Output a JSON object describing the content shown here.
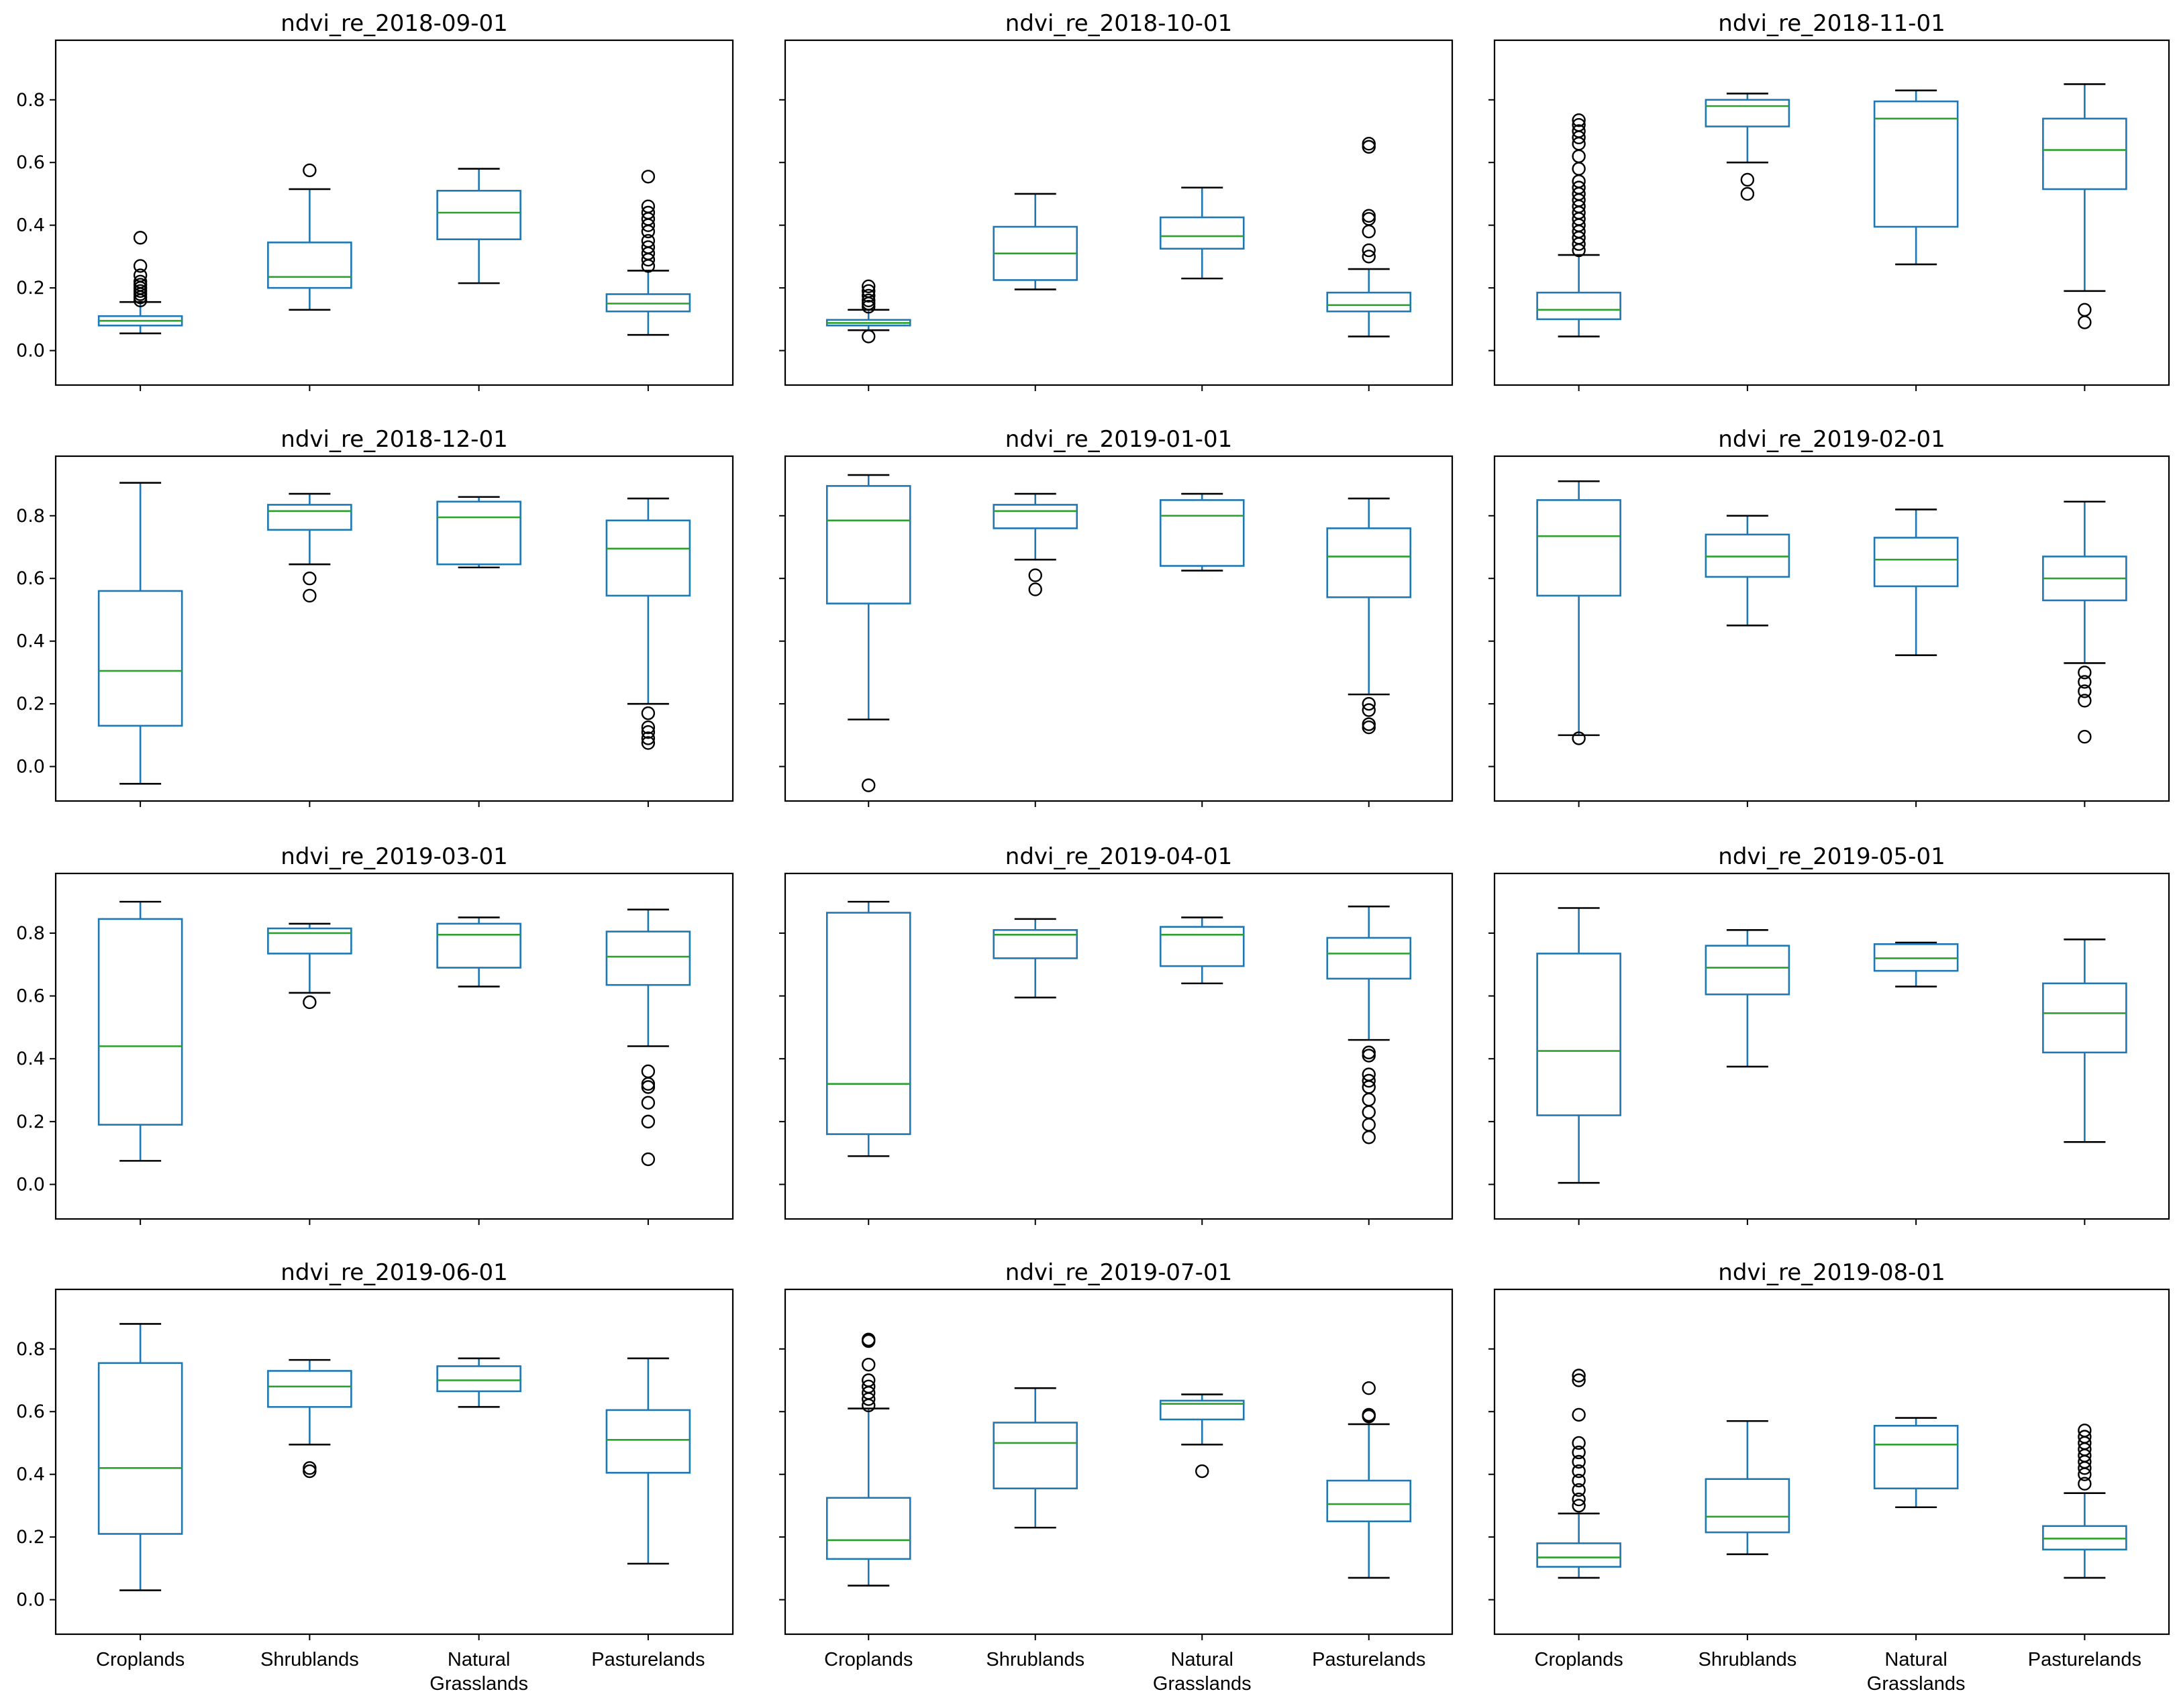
{
  "chart_data": {
    "type": "box",
    "layout": "4x3 grid, shared x and y axes",
    "categories": [
      "Croplands",
      "Shrublands",
      "Natural\nGrasslands",
      "Pasturelands"
    ],
    "ylim": [
      -0.11,
      0.99
    ],
    "yticks": [
      "0.0",
      "0.2",
      "0.4",
      "0.6",
      "0.8"
    ],
    "colors": {
      "box": "#1f77b4",
      "median": "#2ca02c",
      "whisker": "#000000",
      "flier": "#000000"
    },
    "panels": [
      {
        "title": "ndvi_re_2018-09-01",
        "boxes": [
          {
            "q1": 0.08,
            "median": 0.095,
            "q3": 0.11,
            "whislo": 0.055,
            "whishi": 0.155,
            "fliers": [
              0.16,
              0.17,
              0.18,
              0.19,
              0.2,
              0.21,
              0.22,
              0.24,
              0.27,
              0.36
            ]
          },
          {
            "q1": 0.2,
            "median": 0.235,
            "q3": 0.345,
            "whislo": 0.13,
            "whishi": 0.515,
            "fliers": [
              0.575
            ]
          },
          {
            "q1": 0.355,
            "median": 0.44,
            "q3": 0.51,
            "whislo": 0.215,
            "whishi": 0.58,
            "fliers": []
          },
          {
            "q1": 0.125,
            "median": 0.15,
            "q3": 0.18,
            "whislo": 0.05,
            "whishi": 0.255,
            "fliers": [
              0.27,
              0.29,
              0.31,
              0.33,
              0.35,
              0.38,
              0.4,
              0.42,
              0.44,
              0.46,
              0.555
            ]
          }
        ]
      },
      {
        "title": "ndvi_re_2018-10-01",
        "boxes": [
          {
            "q1": 0.08,
            "median": 0.088,
            "q3": 0.098,
            "whislo": 0.065,
            "whishi": 0.13,
            "fliers": [
              0.045,
              0.14,
              0.15,
              0.16,
              0.175,
              0.19,
              0.205
            ]
          },
          {
            "q1": 0.225,
            "median": 0.31,
            "q3": 0.395,
            "whislo": 0.195,
            "whishi": 0.5,
            "fliers": []
          },
          {
            "q1": 0.325,
            "median": 0.365,
            "q3": 0.425,
            "whislo": 0.23,
            "whishi": 0.52,
            "fliers": []
          },
          {
            "q1": 0.125,
            "median": 0.145,
            "q3": 0.185,
            "whislo": 0.045,
            "whishi": 0.26,
            "fliers": [
              0.3,
              0.32,
              0.38,
              0.42,
              0.43,
              0.65,
              0.66
            ]
          }
        ]
      },
      {
        "title": "ndvi_re_2018-11-01",
        "boxes": [
          {
            "q1": 0.1,
            "median": 0.13,
            "q3": 0.185,
            "whislo": 0.045,
            "whishi": 0.305,
            "fliers": [
              0.32,
              0.34,
              0.36,
              0.38,
              0.4,
              0.42,
              0.44,
              0.46,
              0.48,
              0.5,
              0.52,
              0.54,
              0.58,
              0.62,
              0.66,
              0.68,
              0.7,
              0.72,
              0.735
            ]
          },
          {
            "q1": 0.715,
            "median": 0.78,
            "q3": 0.8,
            "whislo": 0.6,
            "whishi": 0.82,
            "fliers": [
              0.5,
              0.545
            ]
          },
          {
            "q1": 0.395,
            "median": 0.74,
            "q3": 0.795,
            "whislo": 0.275,
            "whishi": 0.83,
            "fliers": []
          },
          {
            "q1": 0.515,
            "median": 0.64,
            "q3": 0.74,
            "whislo": 0.19,
            "whishi": 0.85,
            "fliers": [
              0.09,
              0.13
            ]
          }
        ]
      },
      {
        "title": "ndvi_re_2018-12-01",
        "boxes": [
          {
            "q1": 0.13,
            "median": 0.305,
            "q3": 0.56,
            "whislo": -0.055,
            "whishi": 0.905,
            "fliers": []
          },
          {
            "q1": 0.755,
            "median": 0.815,
            "q3": 0.835,
            "whislo": 0.645,
            "whishi": 0.87,
            "fliers": [
              0.545,
              0.6
            ]
          },
          {
            "q1": 0.645,
            "median": 0.795,
            "q3": 0.845,
            "whislo": 0.635,
            "whishi": 0.86,
            "fliers": []
          },
          {
            "q1": 0.545,
            "median": 0.695,
            "q3": 0.785,
            "whislo": 0.2,
            "whishi": 0.855,
            "fliers": [
              0.075,
              0.09,
              0.11,
              0.125,
              0.17
            ]
          }
        ]
      },
      {
        "title": "ndvi_re_2019-01-01",
        "boxes": [
          {
            "q1": 0.52,
            "median": 0.785,
            "q3": 0.895,
            "whislo": 0.15,
            "whishi": 0.93,
            "fliers": [
              -0.06
            ]
          },
          {
            "q1": 0.76,
            "median": 0.815,
            "q3": 0.835,
            "whislo": 0.66,
            "whishi": 0.87,
            "fliers": [
              0.565,
              0.61
            ]
          },
          {
            "q1": 0.64,
            "median": 0.8,
            "q3": 0.85,
            "whislo": 0.625,
            "whishi": 0.87,
            "fliers": []
          },
          {
            "q1": 0.54,
            "median": 0.67,
            "q3": 0.76,
            "whislo": 0.23,
            "whishi": 0.855,
            "fliers": [
              0.125,
              0.135,
              0.18,
              0.2
            ]
          }
        ]
      },
      {
        "title": "ndvi_re_2019-02-01",
        "boxes": [
          {
            "q1": 0.545,
            "median": 0.735,
            "q3": 0.85,
            "whislo": 0.1,
            "whishi": 0.91,
            "fliers": [
              0.09
            ]
          },
          {
            "q1": 0.605,
            "median": 0.67,
            "q3": 0.74,
            "whislo": 0.45,
            "whishi": 0.8,
            "fliers": []
          },
          {
            "q1": 0.575,
            "median": 0.66,
            "q3": 0.73,
            "whislo": 0.355,
            "whishi": 0.82,
            "fliers": []
          },
          {
            "q1": 0.53,
            "median": 0.6,
            "q3": 0.67,
            "whislo": 0.33,
            "whishi": 0.845,
            "fliers": [
              0.095,
              0.21,
              0.24,
              0.27,
              0.3
            ]
          }
        ]
      },
      {
        "title": "ndvi_re_2019-03-01",
        "boxes": [
          {
            "q1": 0.19,
            "median": 0.44,
            "q3": 0.845,
            "whislo": 0.075,
            "whishi": 0.9,
            "fliers": []
          },
          {
            "q1": 0.735,
            "median": 0.8,
            "q3": 0.815,
            "whislo": 0.61,
            "whishi": 0.83,
            "fliers": [
              0.58
            ]
          },
          {
            "q1": 0.69,
            "median": 0.795,
            "q3": 0.83,
            "whislo": 0.63,
            "whishi": 0.85,
            "fliers": []
          },
          {
            "q1": 0.635,
            "median": 0.725,
            "q3": 0.805,
            "whislo": 0.44,
            "whishi": 0.875,
            "fliers": [
              0.08,
              0.2,
              0.26,
              0.31,
              0.32,
              0.36
            ]
          }
        ]
      },
      {
        "title": "ndvi_re_2019-04-01",
        "boxes": [
          {
            "q1": 0.16,
            "median": 0.32,
            "q3": 0.865,
            "whislo": 0.09,
            "whishi": 0.9,
            "fliers": []
          },
          {
            "q1": 0.72,
            "median": 0.795,
            "q3": 0.81,
            "whislo": 0.595,
            "whishi": 0.845,
            "fliers": []
          },
          {
            "q1": 0.695,
            "median": 0.795,
            "q3": 0.82,
            "whislo": 0.64,
            "whishi": 0.85,
            "fliers": []
          },
          {
            "q1": 0.655,
            "median": 0.735,
            "q3": 0.785,
            "whislo": 0.46,
            "whishi": 0.885,
            "fliers": [
              0.15,
              0.19,
              0.23,
              0.27,
              0.31,
              0.33,
              0.35,
              0.41,
              0.42
            ]
          }
        ]
      },
      {
        "title": "ndvi_re_2019-05-01",
        "boxes": [
          {
            "q1": 0.22,
            "median": 0.425,
            "q3": 0.735,
            "whislo": 0.005,
            "whishi": 0.88,
            "fliers": []
          },
          {
            "q1": 0.605,
            "median": 0.69,
            "q3": 0.76,
            "whislo": 0.375,
            "whishi": 0.81,
            "fliers": []
          },
          {
            "q1": 0.68,
            "median": 0.72,
            "q3": 0.765,
            "whislo": 0.63,
            "whishi": 0.77,
            "fliers": []
          },
          {
            "q1": 0.42,
            "median": 0.545,
            "q3": 0.64,
            "whislo": 0.135,
            "whishi": 0.78,
            "fliers": []
          }
        ]
      },
      {
        "title": "ndvi_re_2019-06-01",
        "boxes": [
          {
            "q1": 0.21,
            "median": 0.42,
            "q3": 0.755,
            "whislo": 0.03,
            "whishi": 0.88,
            "fliers": []
          },
          {
            "q1": 0.615,
            "median": 0.68,
            "q3": 0.73,
            "whislo": 0.495,
            "whishi": 0.765,
            "fliers": [
              0.41,
              0.42
            ]
          },
          {
            "q1": 0.665,
            "median": 0.7,
            "q3": 0.745,
            "whislo": 0.615,
            "whishi": 0.77,
            "fliers": []
          },
          {
            "q1": 0.405,
            "median": 0.51,
            "q3": 0.605,
            "whislo": 0.115,
            "whishi": 0.77,
            "fliers": []
          }
        ]
      },
      {
        "title": "ndvi_re_2019-07-01",
        "boxes": [
          {
            "q1": 0.13,
            "median": 0.19,
            "q3": 0.325,
            "whislo": 0.045,
            "whishi": 0.61,
            "fliers": [
              0.62,
              0.64,
              0.66,
              0.68,
              0.7,
              0.75,
              0.825,
              0.83
            ]
          },
          {
            "q1": 0.355,
            "median": 0.5,
            "q3": 0.565,
            "whislo": 0.23,
            "whishi": 0.675,
            "fliers": []
          },
          {
            "q1": 0.575,
            "median": 0.625,
            "q3": 0.635,
            "whislo": 0.495,
            "whishi": 0.655,
            "fliers": [
              0.41
            ]
          },
          {
            "q1": 0.25,
            "median": 0.305,
            "q3": 0.38,
            "whislo": 0.07,
            "whishi": 0.56,
            "fliers": [
              0.585,
              0.59,
              0.675
            ]
          }
        ]
      },
      {
        "title": "ndvi_re_2019-08-01",
        "boxes": [
          {
            "q1": 0.105,
            "median": 0.135,
            "q3": 0.18,
            "whislo": 0.07,
            "whishi": 0.275,
            "fliers": [
              0.3,
              0.32,
              0.35,
              0.38,
              0.41,
              0.44,
              0.47,
              0.5,
              0.59,
              0.7,
              0.715
            ]
          },
          {
            "q1": 0.215,
            "median": 0.265,
            "q3": 0.385,
            "whislo": 0.145,
            "whishi": 0.57,
            "fliers": []
          },
          {
            "q1": 0.355,
            "median": 0.495,
            "q3": 0.555,
            "whislo": 0.295,
            "whishi": 0.58,
            "fliers": []
          },
          {
            "q1": 0.16,
            "median": 0.195,
            "q3": 0.235,
            "whislo": 0.07,
            "whishi": 0.34,
            "fliers": [
              0.37,
              0.4,
              0.42,
              0.44,
              0.46,
              0.48,
              0.5,
              0.52,
              0.54
            ]
          }
        ]
      }
    ]
  }
}
